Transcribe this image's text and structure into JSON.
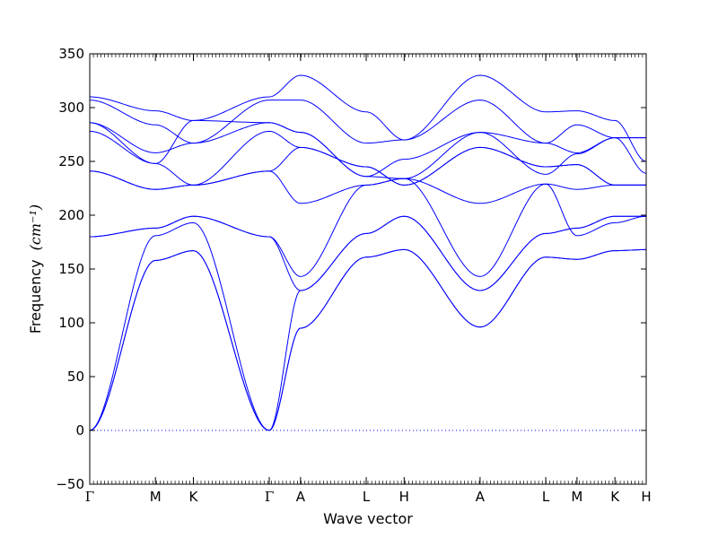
{
  "chart_data": {
    "type": "line",
    "xlabel": "Wave vector",
    "ylabel": "Frequency",
    "ylabel_unit": "(cm⁻¹)",
    "ylim": [
      -50,
      350
    ],
    "yticks": [
      -50,
      0,
      50,
      100,
      150,
      200,
      250,
      300,
      350
    ],
    "grid": false,
    "line_color": "#0000ff",
    "zero_line_style": "dotted",
    "high_symmetry_points": [
      {
        "label": "Γ",
        "pos": 0.0
      },
      {
        "label": "M",
        "pos": 0.618
      },
      {
        "label": "K",
        "pos": 0.975
      },
      {
        "label": "Γ",
        "pos": 1.689
      },
      {
        "label": "A",
        "pos": 1.983
      },
      {
        "label": "L",
        "pos": 2.601
      },
      {
        "label": "H",
        "pos": 2.958
      },
      {
        "label": "A",
        "pos": 3.672
      },
      {
        "label": "L",
        "pos": 4.29
      },
      {
        "label": "M",
        "pos": 4.584
      },
      {
        "label": "K",
        "pos": 4.941
      },
      {
        "label": "H",
        "pos": 5.235
      }
    ],
    "series": [
      {
        "values": [
          0,
          158,
          167,
          0,
          95,
          161,
          168,
          96,
          161,
          159,
          167,
          168
        ]
      },
      {
        "values": [
          0,
          158,
          167,
          0,
          95,
          161,
          168,
          96,
          161,
          159,
          167,
          168
        ]
      },
      {
        "values": [
          0,
          181,
          193,
          0,
          130,
          183,
          199,
          130,
          183,
          188,
          199,
          199
        ]
      },
      {
        "values": [
          180,
          188,
          199,
          180,
          130,
          183,
          199,
          130,
          183,
          188,
          199,
          199
        ]
      },
      {
        "values": [
          180,
          188,
          199,
          180,
          143,
          228,
          234,
          143,
          229,
          181,
          193,
          199
        ]
      },
      {
        "values": [
          241,
          224,
          228,
          241,
          211,
          228,
          234,
          211,
          229,
          224,
          228,
          228
        ]
      },
      {
        "values": [
          241,
          224,
          228,
          241,
          263,
          245,
          228,
          263,
          245,
          247,
          228,
          228
        ]
      },
      {
        "values": [
          278,
          248,
          228,
          278,
          263,
          245,
          228,
          263,
          245,
          247,
          228,
          228
        ]
      },
      {
        "values": [
          286,
          248,
          288,
          286,
          277,
          236,
          234,
          277,
          238,
          257,
          272,
          239
        ]
      },
      {
        "values": [
          286,
          258,
          267,
          286,
          277,
          236,
          252,
          277,
          267,
          258,
          272,
          272
        ]
      },
      {
        "values": [
          307,
          284,
          267,
          307,
          307,
          267,
          270,
          307,
          267,
          284,
          272,
          272
        ]
      },
      {
        "values": [
          310,
          297,
          288,
          310,
          330,
          296,
          270,
          330,
          296,
          297,
          288,
          250
        ]
      }
    ]
  }
}
